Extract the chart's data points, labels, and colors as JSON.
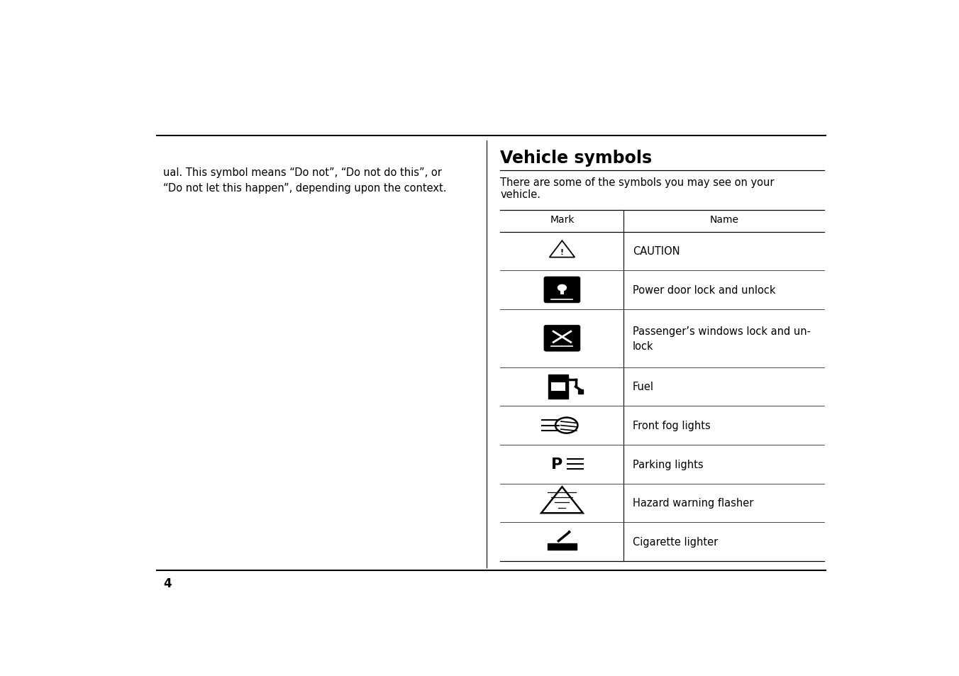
{
  "title": "Vehicle symbols",
  "subtitle_line1": "There are some of the symbols you may see on your",
  "subtitle_line2": "vehicle.",
  "left_text_line1": "ual. This symbol means “Do not”, “Do not do this”, or",
  "left_text_line2": "“Do not let this happen”, depending upon the context.",
  "page_number": "4",
  "col_header_mark": "Mark",
  "col_header_name": "Name",
  "names": [
    "CAUTION",
    "Power door lock and unlock",
    "Passenger’s windows lock and un-\nlock",
    "Fuel",
    "Front fog lights",
    "Parking lights",
    "Hazard warning flasher",
    "Cigarette lighter"
  ],
  "row_heights_rel": [
    1,
    1,
    1.5,
    1,
    1,
    1,
    1,
    1
  ],
  "bg_color": "#ffffff",
  "text_color": "#000000",
  "line_color": "#000000"
}
